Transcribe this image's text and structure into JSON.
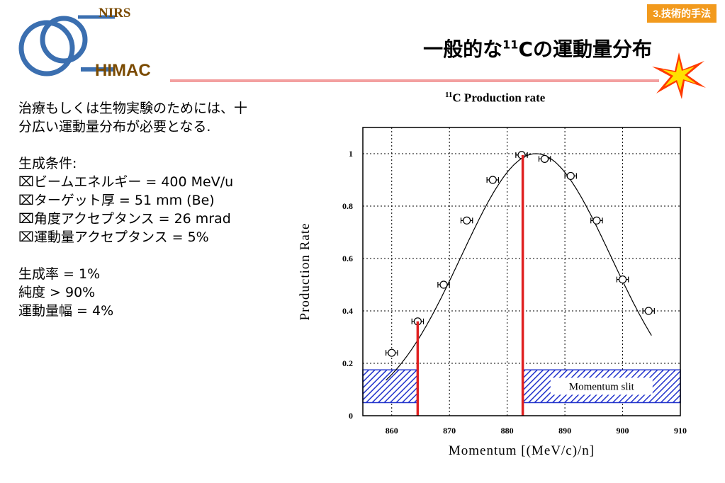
{
  "header": {
    "section_tag": "3.技術的手法",
    "logo_top": "NIRS",
    "logo_bottom": "HIMAC",
    "title_prefix": "一般的な",
    "title_sup": "11",
    "title_suffix": "Cの運動量分布"
  },
  "left_text": {
    "intro_line1": "治療もしくは生物実験のためには、十",
    "intro_line2": "分広い運動量分布が必要となる.",
    "conditions_heading": "生成条件:",
    "conditions": [
      "⌧ビームエネルギー = 400 MeV/u",
      "⌧ターゲット厚 = 51 mm (Be)",
      "⌧角度アクセプタンス = 26 mrad",
      "⌧運動量アクセプタンス = 5%"
    ],
    "results": [
      "生成率 = 1%",
      "純度 > 90%",
      "運動量幅 = 4%"
    ]
  },
  "chart_data": {
    "type": "scatter",
    "title_sup": "11",
    "title_rest": "C Production rate",
    "xlabel": "Momentum [(MeV/c)/n]",
    "ylabel": "Production Rate",
    "xlim": [
      855,
      910
    ],
    "ylim": [
      0,
      1.1
    ],
    "xticks": [
      860,
      870,
      880,
      890,
      900,
      910
    ],
    "yticks": [
      0,
      0.2,
      0.4,
      0.6,
      0.8,
      1
    ],
    "grid": true,
    "points": [
      {
        "x": 860,
        "y": 0.24,
        "xerr": 1
      },
      {
        "x": 864.5,
        "y": 0.36,
        "xerr": 1
      },
      {
        "x": 869,
        "y": 0.5,
        "xerr": 1
      },
      {
        "x": 873,
        "y": 0.745,
        "xerr": 1
      },
      {
        "x": 877.5,
        "y": 0.9,
        "xerr": 1
      },
      {
        "x": 882.5,
        "y": 0.995,
        "xerr": 1
      },
      {
        "x": 886.5,
        "y": 0.98,
        "xerr": 1
      },
      {
        "x": 891,
        "y": 0.915,
        "xerr": 1
      },
      {
        "x": 895.5,
        "y": 0.745,
        "xerr": 1
      },
      {
        "x": 900,
        "y": 0.52,
        "xerr": 1
      },
      {
        "x": 904.5,
        "y": 0.4,
        "xerr": 1
      }
    ],
    "curve": {
      "center": 885,
      "sigma": 13,
      "amplitude": 1.0,
      "x_range": [
        859,
        905
      ]
    },
    "slit_lines": [
      864.5,
      882.7
    ],
    "slit_label": "Momentum slit",
    "slit_band_y": [
      0.05,
      0.175
    ],
    "slit_bands": [
      [
        855,
        864.5
      ],
      [
        882.7,
        910
      ]
    ],
    "colors": {
      "slit_line": "#e02020",
      "slit_band": "#2233cc",
      "curve": "#000000"
    }
  }
}
